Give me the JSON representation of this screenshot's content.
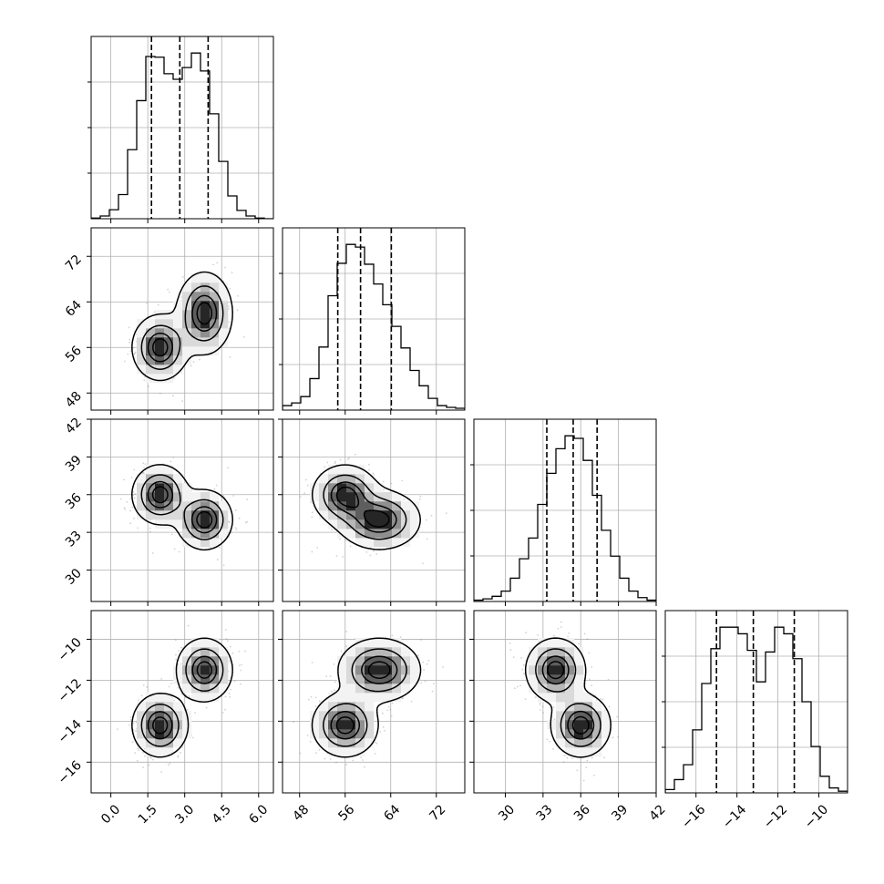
{
  "chart_data": {
    "type": "corner",
    "description_free": true,
    "parameters": [
      {
        "range": [
          -0.8,
          6.6
        ],
        "ticks": [
          0.0,
          1.5,
          3.0,
          4.5,
          6.0
        ],
        "tick_labels": [
          "0.0",
          "1.5",
          "3.0",
          "4.5",
          "6.0"
        ],
        "quantiles": [
          1.65,
          2.8,
          3.95
        ],
        "hist_edges": [
          -0.8,
          -0.43,
          -0.06,
          0.31,
          0.68,
          1.05,
          1.42,
          1.79,
          2.16,
          2.53,
          2.9,
          3.27,
          3.64,
          4.01,
          4.38,
          4.75,
          5.12,
          5.49,
          5.86,
          6.23,
          6.6
        ],
        "hist_counts": [
          1,
          4,
          13,
          35,
          100,
          171,
          235,
          234,
          210,
          202,
          219,
          240,
          214,
          152,
          83,
          33,
          12,
          4,
          1,
          0
        ]
      },
      {
        "range": [
          45.0,
          77.0
        ],
        "ticks": [
          48,
          56,
          64,
          72
        ],
        "tick_labels": [
          "48",
          "56",
          "64",
          "72"
        ],
        "quantiles": [
          54.7,
          58.7,
          64.1
        ],
        "hist_edges": [
          45.0,
          46.6,
          48.2,
          49.8,
          51.4,
          53.0,
          54.6,
          56.2,
          57.8,
          59.4,
          61.0,
          62.6,
          64.2,
          65.8,
          67.4,
          69.0,
          70.6,
          72.2,
          73.8,
          75.4,
          77.0
        ],
        "hist_counts": [
          5,
          8,
          15,
          35,
          70,
          127,
          163,
          184,
          181,
          162,
          140,
          117,
          93,
          69,
          44,
          27,
          13,
          5,
          3,
          2
        ]
      },
      {
        "range": [
          27.5,
          42.0
        ],
        "ticks": [
          30,
          33,
          36,
          39,
          42
        ],
        "tick_labels": [
          "30",
          "33",
          "36",
          "39",
          "42"
        ],
        "quantiles": [
          33.3,
          35.4,
          37.3
        ],
        "hist_edges": [
          27.5,
          28.225,
          28.95,
          29.675,
          30.4,
          31.125,
          31.85,
          32.575,
          33.3,
          34.025,
          34.75,
          35.475,
          36.2,
          36.925,
          37.65,
          38.375,
          39.1,
          39.825,
          40.55,
          41.275,
          42.0
        ],
        "hist_counts": [
          1,
          2,
          4,
          8,
          18,
          33,
          49,
          75,
          99,
          118,
          128,
          126,
          109,
          82,
          55,
          35,
          18,
          8,
          3,
          1
        ]
      },
      {
        "range": [
          -17.5,
          -8.6
        ],
        "ticks": [
          -16,
          -14,
          -12,
          -10
        ],
        "tick_labels": [
          "−16",
          "−14",
          "−12",
          "−10"
        ],
        "quantiles": [
          -15.0,
          -13.2,
          -11.2
        ],
        "hist_edges": [
          -17.5,
          -17.055,
          -16.61,
          -16.165,
          -15.72,
          -15.275,
          -14.83,
          -14.385,
          -13.94,
          -13.495,
          -13.05,
          -12.605,
          -12.16,
          -11.715,
          -11.27,
          -10.825,
          -10.38,
          -9.935,
          -9.49,
          -9.045,
          -8.6
        ],
        "hist_counts": [
          2,
          8,
          17,
          38,
          66,
          87,
          100,
          100,
          96,
          86,
          67,
          85,
          100,
          96,
          81,
          55,
          28,
          10,
          3,
          1
        ]
      }
    ],
    "modes": [
      {
        "mean": [
          2.0,
          56.0,
          36.0,
          -14.2
        ],
        "sd": [
          0.55,
          2.8,
          1.15,
          0.75
        ],
        "weight": 0.5
      },
      {
        "mean": [
          3.8,
          62.0,
          34.0,
          -11.5
        ],
        "sd": [
          0.55,
          3.5,
          1.15,
          0.75
        ],
        "weight": 0.5
      }
    ],
    "density_levels": [
      0.118,
      0.393,
      0.675,
      0.865
    ],
    "line_color": "#000000",
    "grid_color": "#b0b0b0",
    "scatter_color": "#7f7f7f",
    "grid": true
  }
}
